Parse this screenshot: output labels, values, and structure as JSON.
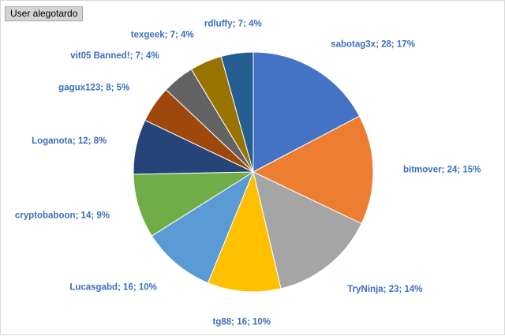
{
  "header": {
    "user_tab": "User alegotardo"
  },
  "colors": {
    "label": "#3c6fbf",
    "slice_border": "#ffffff"
  },
  "chart_data": {
    "type": "pie",
    "title": "",
    "start": "12 o'clock",
    "direction": "clockwise",
    "legend": "none",
    "slices": [
      {
        "name": "sabotag3x",
        "value": 28,
        "percent": 17,
        "label": "sabotag3x; 28; 17%",
        "color": "#4472c4"
      },
      {
        "name": "bitmover",
        "value": 24,
        "percent": 15,
        "label": "bitmover; 24; 15%",
        "color": "#ed7d31"
      },
      {
        "name": "TryNinja",
        "value": 23,
        "percent": 14,
        "label": "TryNinja; 23; 14%",
        "color": "#a5a5a5"
      },
      {
        "name": "tg88",
        "value": 16,
        "percent": 10,
        "label": "tg88; 16; 10%",
        "color": "#ffc000"
      },
      {
        "name": "Lucasgabd",
        "value": 16,
        "percent": 10,
        "label": "Lucasgabd; 16; 10%",
        "color": "#5b9bd5"
      },
      {
        "name": "cryptobaboon",
        "value": 14,
        "percent": 9,
        "label": "cryptobaboon; 14; 9%",
        "color": "#70ad47"
      },
      {
        "name": "Loganota",
        "value": 12,
        "percent": 8,
        "label": "Loganota; 12; 8%",
        "color": "#264478"
      },
      {
        "name": "gagux123",
        "value": 8,
        "percent": 5,
        "label": "gagux123; 8; 5%",
        "color": "#9e480e"
      },
      {
        "name": "vit05 Banned!",
        "value": 7,
        "percent": 4,
        "label": "vit05 Banned!; 7; 4%",
        "color": "#636363"
      },
      {
        "name": "texgeek",
        "value": 7,
        "percent": 4,
        "label": "texgeek; 7; 4%",
        "color": "#997300"
      },
      {
        "name": "rdluffy",
        "value": 7,
        "percent": 4,
        "label": "rdluffy; 7; 4%",
        "color": "#255e91"
      }
    ]
  }
}
